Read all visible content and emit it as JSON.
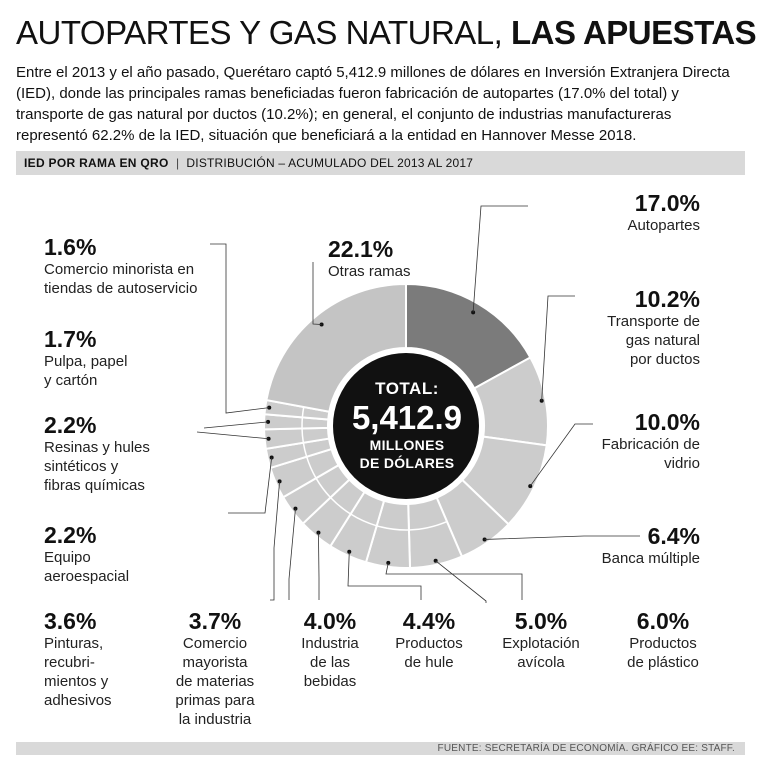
{
  "header": {
    "title_light": "AUTOPARTES Y GAS NATURAL,",
    "title_bold": "LAS APUESTAS",
    "intro": "Entre el 2013 y el año pasado, Querétaro captó 5,412.9 millones de dólares en Inversión Extranjera Directa (IED), donde las principales ramas beneficiadas fueron fabricación de autopartes (17.0% del total) y transporte de gas natural por ductos (10.2%); en general, el conjunto de industrias manufactureras representó 62.2% de la IED, situación que beneficiará a la entidad en Hannover Messe 2018."
  },
  "subheader": {
    "label": "IED POR RAMA EN QRO",
    "separator": "|",
    "description": "DISTRIBUCIÓN – ACUMULADO DEL 2013 AL 2017"
  },
  "center": {
    "line1": "TOTAL:",
    "line2": "5,412.9",
    "line3": "MILLONES",
    "line4": "DE DÓLARES"
  },
  "footer": {
    "source": "FUENTE: SECRETARÍA DE ECONOMÍA.   GRÁFICO EE: STAFF."
  },
  "colors": {
    "highlight": "#7b7b7b",
    "segment": "#cccccc",
    "other": "#c4c4c4",
    "divider": "#ffffff",
    "center": "#111111"
  },
  "chart_data": {
    "type": "pie",
    "title": "IED POR RAMA EN QRO",
    "subtitle": "DISTRIBUCIÓN – ACUMULADO DEL 2013 AL 2017",
    "total": "5,412.9",
    "unit": "%",
    "slices": [
      {
        "label": "Autopartes",
        "value": 17.0,
        "pct": "17.0%"
      },
      {
        "label": "Transporte de gas natural por ductos",
        "value": 10.2,
        "pct": "10.2%"
      },
      {
        "label": "Fabricación de vidrio",
        "value": 10.0,
        "pct": "10.0%"
      },
      {
        "label": "Banca múltiple",
        "value": 6.4,
        "pct": "6.4%"
      },
      {
        "label": "Productos de plástico",
        "value": 6.0,
        "pct": "6.0%"
      },
      {
        "label": "Explotación avícola",
        "value": 5.0,
        "pct": "5.0%"
      },
      {
        "label": "Productos de hule",
        "value": 4.4,
        "pct": "4.4%"
      },
      {
        "label": "Industria de las bebidas",
        "value": 4.0,
        "pct": "4.0%"
      },
      {
        "label": "Comercio mayorista de materias primas para la industria",
        "value": 3.7,
        "pct": "3.7%"
      },
      {
        "label": "Pinturas, recubrimientos y adhesivos",
        "value": 3.6,
        "pct": "3.6%"
      },
      {
        "label": "Equipo aeroespacial",
        "value": 2.2,
        "pct": "2.2%"
      },
      {
        "label": "Resinas y hules sintéticos y fibras químicas",
        "value": 2.2,
        "pct": "2.2%"
      },
      {
        "label": "Pulpa, papel y cartón",
        "value": 1.7,
        "pct": "1.7%"
      },
      {
        "label": "Comercio minorista en tiendas de autoservicio",
        "value": 1.6,
        "pct": "1.6%"
      },
      {
        "label": "Otras ramas",
        "value": 22.1,
        "pct": "22.1%"
      }
    ]
  },
  "labels": [
    {
      "pct": "17.0%",
      "lines": [
        "Autopartes"
      ]
    },
    {
      "pct": "10.2%",
      "lines": [
        "Transporte de",
        "gas natural",
        "por ductos"
      ]
    },
    {
      "pct": "10.0%",
      "lines": [
        "Fabricación de",
        "vidrio"
      ]
    },
    {
      "pct": "6.4%",
      "lines": [
        "Banca múltiple"
      ]
    },
    {
      "pct": "6.0%",
      "lines": [
        "Productos",
        "de plástico"
      ]
    },
    {
      "pct": "5.0%",
      "lines": [
        "Explotación",
        "avícola"
      ]
    },
    {
      "pct": "4.4%",
      "lines": [
        "Productos",
        "de hule"
      ]
    },
    {
      "pct": "4.0%",
      "lines": [
        "Industria",
        "de las",
        "bebidas"
      ]
    },
    {
      "pct": "3.7%",
      "lines": [
        "Comercio",
        "mayorista",
        "de materias",
        "primas para",
        "la industria"
      ]
    },
    {
      "pct": "3.6%",
      "lines": [
        "Pinturas,",
        "recubri-",
        "mientos y",
        "adhesivos"
      ]
    },
    {
      "pct": "2.2%",
      "lines": [
        "Equipo",
        "aeroespacial"
      ]
    },
    {
      "pct": "2.2%",
      "lines": [
        "Resinas y hules",
        "sintéticos y",
        "fibras químicas"
      ]
    },
    {
      "pct": "1.7%",
      "lines": [
        "Pulpa, papel",
        "y cartón"
      ]
    },
    {
      "pct": "1.6%",
      "lines": [
        "Comercio minorista en",
        "tiendas de autoservicio"
      ]
    },
    {
      "pct": "22.1%",
      "lines": [
        "Otras ramas"
      ]
    }
  ]
}
